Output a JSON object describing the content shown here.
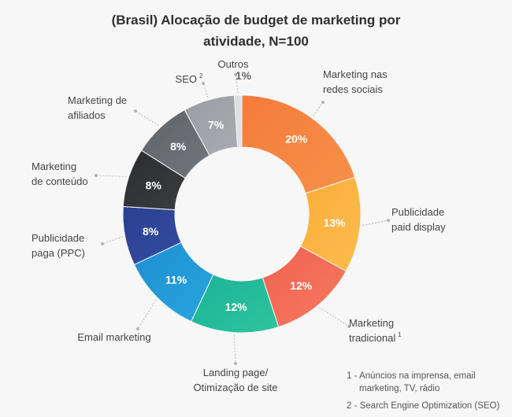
{
  "title_line1": "(Brasil) Alocação de budget de marketing por",
  "title_line2": "atividade, N=100",
  "chart_data": {
    "type": "pie",
    "variant": "donut",
    "title": "(Brasil) Alocação de budget de marketing por atividade, N=100",
    "slices": [
      {
        "label": "Marketing nas redes sociais",
        "label_lines": [
          "Marketing nas",
          "redes sociais"
        ],
        "value": 20,
        "value_label": "20%",
        "color": "#f47b3b",
        "color2": "#f79148"
      },
      {
        "label": "Publicidade paid display",
        "label_lines": [
          "Publicidade",
          "paid display"
        ],
        "value": 13,
        "value_label": "13%",
        "color": "#fbac3a",
        "color2": "#fcbd4d"
      },
      {
        "label": "Marketing tradicional 1",
        "label_lines": [
          "Marketing",
          "tradicional"
        ],
        "sup": "1",
        "value": 12,
        "value_label": "12%",
        "color": "#f26254",
        "color2": "#f47a5e"
      },
      {
        "label": "Landing page/ Otimização de site",
        "label_lines": [
          "Landing page/",
          "Otimização de site"
        ],
        "value": 12,
        "value_label": "12%",
        "color": "#1bb39a",
        "color2": "#2ec49c"
      },
      {
        "label": "Email marketing",
        "label_lines": [
          "Email marketing"
        ],
        "value": 11,
        "value_label": "11%",
        "color": "#1d8ed1",
        "color2": "#2aa6dd"
      },
      {
        "label": "Publicidade paga (PPC)",
        "label_lines": [
          "Publicidade",
          "paga (PPC)"
        ],
        "value": 8,
        "value_label": "8%",
        "color": "#2a3f8f",
        "color2": "#344da3"
      },
      {
        "label": "Marketing de conteúdo",
        "label_lines": [
          "Marketing",
          "de conteúdo"
        ],
        "value": 8,
        "value_label": "8%",
        "color": "#2b2d30",
        "color2": "#3a3c3f"
      },
      {
        "label": "Marketing de afiliados",
        "label_lines": [
          "Marketing de",
          "afiliados"
        ],
        "value": 8,
        "value_label": "8%",
        "color": "#5f6469",
        "color2": "#71767b"
      },
      {
        "label": "SEO 2",
        "label_lines": [
          "SEO"
        ],
        "sup": "2",
        "value": 7,
        "value_label": "7%",
        "color": "#9a9da3",
        "color2": "#a8abb0"
      },
      {
        "label": "Outros",
        "label_lines": [
          "Outros"
        ],
        "value": 1,
        "value_label": "1%",
        "color": "#dcdcdc",
        "color2": "#e4e4e4"
      }
    ]
  },
  "footnotes": {
    "fn1_line1": "1 - Anúncios na imprensa, email",
    "fn1_line2": "marketing, TV, rádio",
    "fn2": "2 - Search Engine Optimization (SEO)"
  }
}
